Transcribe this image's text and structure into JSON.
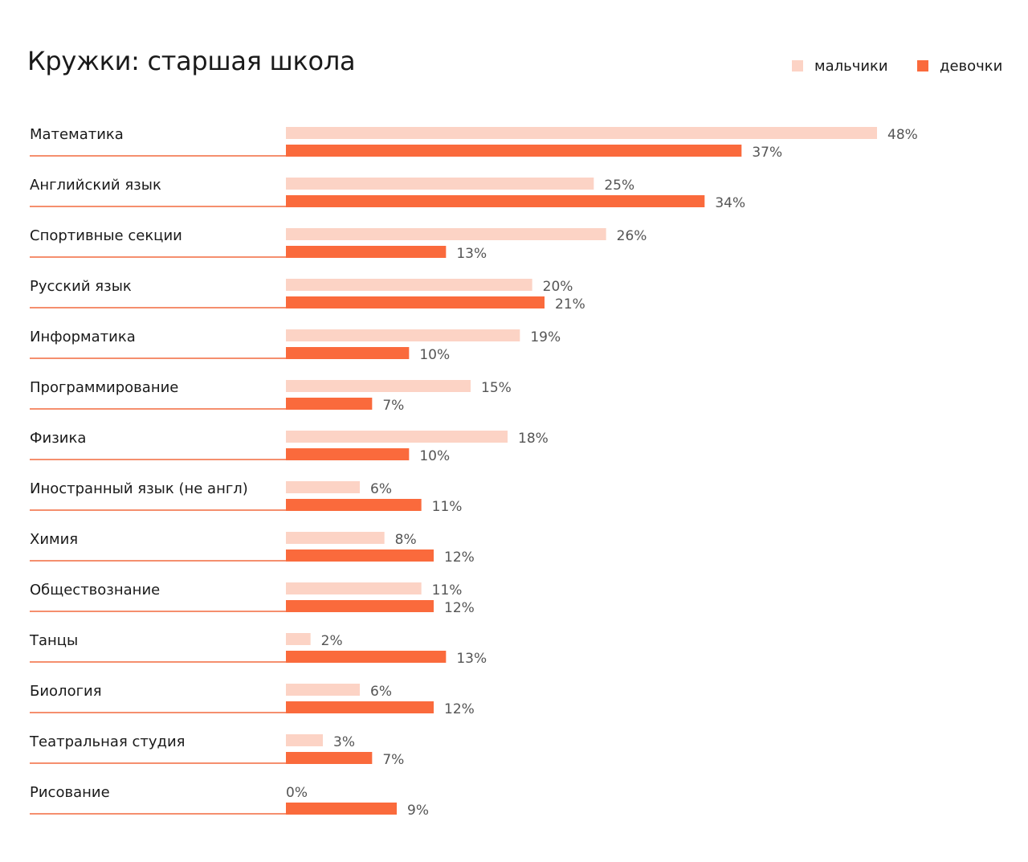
{
  "colors": {
    "boys": "#fcd3c5",
    "girls": "#fa6a3c",
    "line": "#f26a3e"
  },
  "legend": {
    "boys": "мальчики",
    "girls": "девочки"
  },
  "chart_data": {
    "type": "bar",
    "orientation": "horizontal",
    "title": "Кружки: старшая школа",
    "legend_position": "top-right",
    "grid": false,
    "categories": [
      "Математика",
      "Английский язык",
      "Спортивные секции",
      "Русский язык",
      "Информатика",
      "Программирование",
      "Физика",
      "Иностранный язык (не англ)",
      "Химия",
      "Обществознание",
      "Танцы",
      "Биология",
      "Театральная студия",
      "Рисование"
    ],
    "series": [
      {
        "name": "мальчики",
        "values": [
          48,
          25,
          26,
          20,
          19,
          15,
          18,
          6,
          8,
          11,
          2,
          6,
          3,
          0
        ],
        "labels": [
          "48%",
          "25%",
          "26%",
          "20%",
          "19%",
          "15%",
          "18%",
          "6%",
          "8%",
          "11%",
          "2%",
          "6%",
          "3%",
          "0%"
        ]
      },
      {
        "name": "девочки",
        "values": [
          37,
          34,
          13,
          21,
          10,
          7,
          10,
          11,
          12,
          12,
          13,
          12,
          7,
          9
        ],
        "labels": [
          "37%",
          "34%",
          "13%",
          "21%",
          "10%",
          "7%",
          "10%",
          "11%",
          "12%",
          "12%",
          "13%",
          "12%",
          "7%",
          "9%"
        ]
      }
    ],
    "xlim": [
      0,
      48
    ]
  }
}
